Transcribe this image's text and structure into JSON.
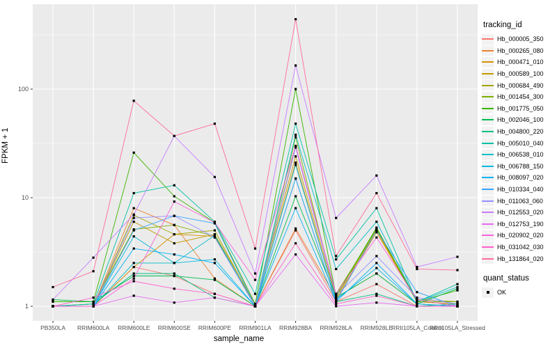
{
  "chart_data": {
    "type": "line",
    "title": "",
    "xlabel": "sample_name",
    "ylabel": "FPKM + 1",
    "y_scale": "log10",
    "y_ticks": [
      1,
      10,
      100
    ],
    "y_minor_ticks": [
      3.162,
      31.62,
      316.2
    ],
    "ylim": [
      0.73,
      600
    ],
    "grid": true,
    "panel_bg": "#EBEBEB",
    "grid_color": "#FFFFFF",
    "axis_text_color": "#4D4D4D",
    "tick_color": "#333333",
    "point_color": "#000000",
    "legend_position": "right",
    "categories": [
      "PB350LA",
      "RRIM600LA",
      "RRIM600LE",
      "RRIM600SE",
      "RRIM600PE",
      "RRIM901LA",
      "RRIM928BA",
      "RRIM928LA",
      "RRIM928LE",
      "RRII105LA_Control",
      "RRII105LA_Stressed"
    ],
    "series": [
      {
        "name": "Hb_000005_350",
        "color": "#F8766D",
        "values": [
          1.0,
          1.0,
          2.3,
          1.9,
          1.3,
          1.0,
          5.0,
          1.1,
          1.6,
          1.0,
          1.0
        ]
      },
      {
        "name": "Hb_000265_080",
        "color": "#EA8331",
        "values": [
          1.0,
          1.0,
          8.0,
          5.6,
          1.8,
          1.0,
          5.2,
          1.2,
          2.0,
          1.05,
          1.0
        ]
      },
      {
        "name": "Hb_000471_010",
        "color": "#D89000",
        "values": [
          1.0,
          1.0,
          2.3,
          4.6,
          4.4,
          1.0,
          21.0,
          1.15,
          4.8,
          1.1,
          1.05
        ]
      },
      {
        "name": "Hb_000589_100",
        "color": "#C09B00",
        "values": [
          1.0,
          1.0,
          6.0,
          3.8,
          4.6,
          1.05,
          24.0,
          1.2,
          5.0,
          1.1,
          1.05
        ]
      },
      {
        "name": "Hb_000684_490",
        "color": "#A3A500",
        "values": [
          1.0,
          1.0,
          6.9,
          4.6,
          5.0,
          1.0,
          30.0,
          1.3,
          5.1,
          1.15,
          1.1
        ]
      },
      {
        "name": "Hb_001454_300",
        "color": "#7CAE00",
        "values": [
          1.0,
          1.05,
          5.1,
          5.6,
          4.4,
          1.0,
          36.0,
          1.2,
          5.2,
          1.1,
          1.1
        ]
      },
      {
        "name": "Hb_001775_050",
        "color": "#39B600",
        "values": [
          1.1,
          1.1,
          26.0,
          10.3,
          5.9,
          1.05,
          100.0,
          1.25,
          5.3,
          1.1,
          1.4
        ]
      },
      {
        "name": "Hb_002046_100",
        "color": "#00BB4E",
        "values": [
          1.15,
          1.1,
          1.9,
          1.9,
          1.75,
          1.0,
          10.3,
          1.2,
          2.0,
          1.05,
          1.45
        ]
      },
      {
        "name": "Hb_004800_220",
        "color": "#00BF7D",
        "values": [
          1.0,
          1.05,
          2.0,
          2.0,
          1.2,
          1.0,
          15.0,
          1.1,
          1.3,
          1.0,
          1.05
        ]
      },
      {
        "name": "Hb_005010_040",
        "color": "#00C1A3",
        "values": [
          1.0,
          1.05,
          11.0,
          13.0,
          6.0,
          1.3,
          48.0,
          2.7,
          8.0,
          1.1,
          1.6
        ]
      },
      {
        "name": "Hb_006538_010",
        "color": "#00BFC4",
        "values": [
          1.0,
          1.0,
          2.5,
          2.5,
          4.5,
          1.0,
          38.0,
          2.2,
          6.0,
          1.1,
          1.5
        ]
      },
      {
        "name": "Hb_006788_150",
        "color": "#00BAE0",
        "values": [
          1.0,
          1.0,
          4.4,
          2.5,
          2.7,
          1.0,
          20.0,
          1.15,
          2.25,
          1.05,
          1.0
        ]
      },
      {
        "name": "Hb_008097_020",
        "color": "#00B0F6",
        "values": [
          1.0,
          1.0,
          3.4,
          3.0,
          2.5,
          1.0,
          8.0,
          1.1,
          2.5,
          1.05,
          1.0
        ]
      },
      {
        "name": "Hb_010334_040",
        "color": "#35A2FF",
        "values": [
          1.0,
          1.0,
          5.0,
          6.8,
          5.8,
          1.0,
          15.0,
          1.1,
          5.0,
          1.35,
          1.0
        ]
      },
      {
        "name": "Hb_011063_060",
        "color": "#9590FF",
        "values": [
          1.0,
          1.0,
          6.5,
          6.8,
          4.3,
          1.0,
          29.0,
          1.25,
          2.9,
          1.2,
          1.05
        ]
      },
      {
        "name": "Hb_012553_020",
        "color": "#C77CFF",
        "values": [
          1.15,
          2.8,
          7.0,
          37.0,
          15.5,
          2.0,
          165.0,
          6.5,
          16.0,
          2.3,
          2.85
        ]
      },
      {
        "name": "Hb_012753_190",
        "color": "#E76BF3",
        "values": [
          1.0,
          1.0,
          1.25,
          1.08,
          1.2,
          1.0,
          3.0,
          1.0,
          1.08,
          1.0,
          1.0
        ]
      },
      {
        "name": "Hb_020902_020",
        "color": "#FA62DB",
        "values": [
          1.0,
          1.0,
          1.8,
          9.2,
          5.9,
          1.75,
          30.0,
          1.3,
          4.3,
          1.15,
          1.0
        ]
      },
      {
        "name": "Hb_031042_030",
        "color": "#FF61CC",
        "values": [
          1.0,
          1.2,
          1.7,
          1.45,
          1.3,
          1.0,
          3.8,
          1.05,
          1.25,
          1.0,
          1.0
        ]
      },
      {
        "name": "Hb_131864_020",
        "color": "#FF6A98",
        "values": [
          1.5,
          2.1,
          78.0,
          37.0,
          48.0,
          3.4,
          440.0,
          2.9,
          11.0,
          2.2,
          2.15
        ]
      }
    ],
    "legend": {
      "tracking_title": "tracking_id",
      "quant_title": "quant_status",
      "quant_items": [
        {
          "label": "OK",
          "marker": "black-square"
        }
      ]
    }
  }
}
